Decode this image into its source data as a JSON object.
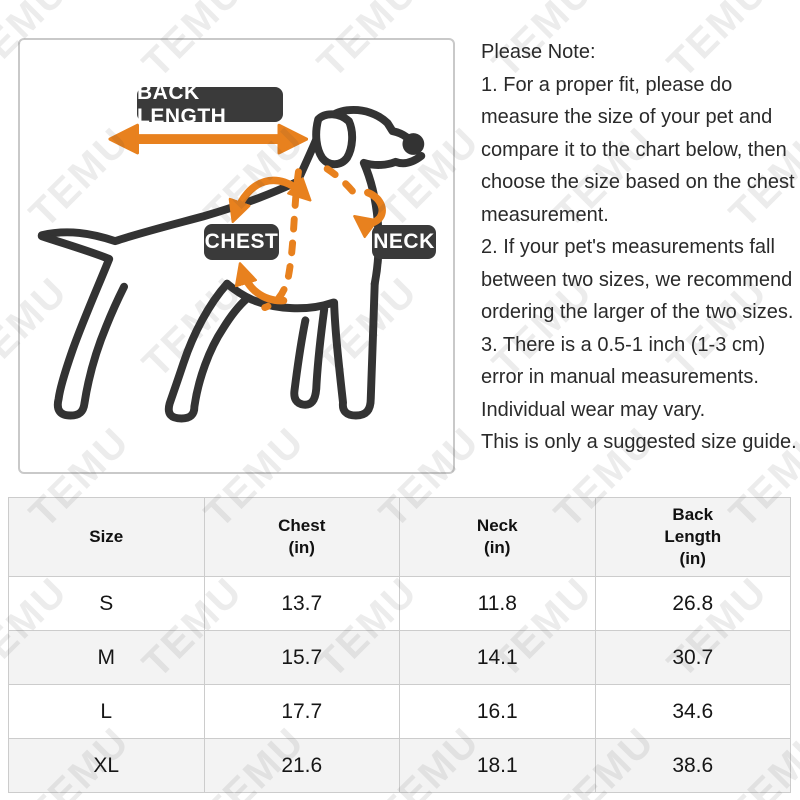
{
  "watermark": {
    "text": "TEMU"
  },
  "colors": {
    "accent_orange": "#E8811E",
    "label_background": "#3A3A3A",
    "dog_outline": "#333333",
    "table_border": "#CCCCCC",
    "table_alt_row": "#F3F3F3"
  },
  "diagram": {
    "labels": {
      "back_length": "BACK LENGTH",
      "chest": "CHEST",
      "neck": "NECK"
    }
  },
  "note": {
    "lines": [
      "Please Note:",
      "1. For a proper fit, please do",
      "measure the size of your pet and",
      "compare it to the chart below, then",
      "choose the size based on the chest",
      "measurement.",
      "2. If your pet's measurements fall",
      "between two sizes, we recommend",
      "ordering the larger of the two sizes.",
      "3. There is a 0.5-1 inch (1-3 cm)",
      "error in manual measurements.",
      "Individual wear may vary.",
      "This is only a suggested size guide."
    ]
  },
  "table": {
    "columns": [
      "Size",
      "Chest\n(in)",
      "Neck\n(in)",
      "Back\nLength\n(in)"
    ],
    "rows": [
      [
        "S",
        "13.7",
        "11.8",
        "26.8"
      ],
      [
        "M",
        "15.7",
        "14.1",
        "30.7"
      ],
      [
        "L",
        "17.7",
        "16.1",
        "34.6"
      ],
      [
        "XL",
        "21.6",
        "18.1",
        "38.6"
      ]
    ]
  }
}
